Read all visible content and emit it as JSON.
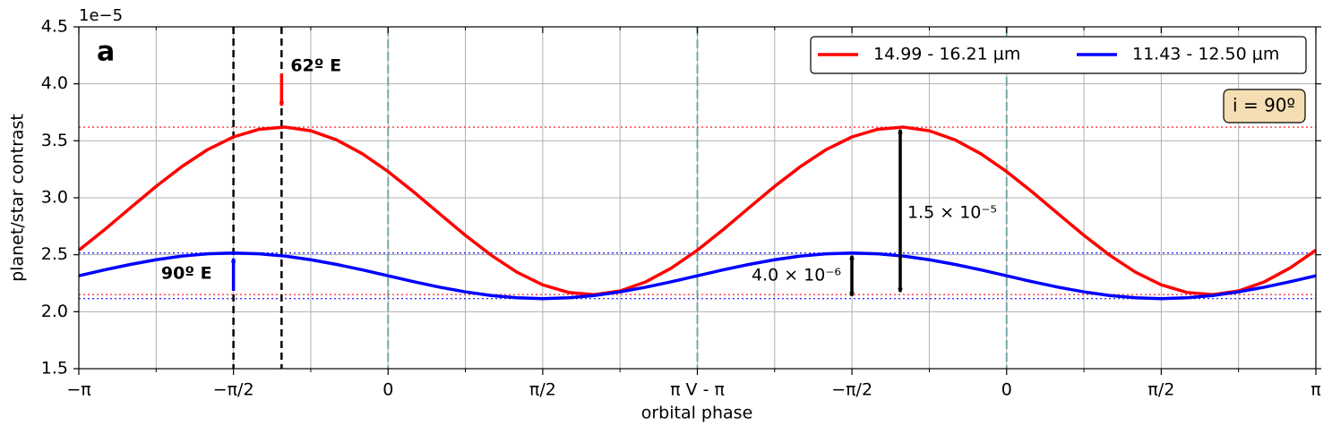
{
  "chart_data": {
    "type": "line",
    "panel_label": "a",
    "inclination_label": "i = 90º",
    "xlabel": "orbital phase",
    "ylabel": "planet/star contrast",
    "y_offset_label": "1e−5",
    "xlim": [
      -3.1416,
      9.4248
    ],
    "ylim": [
      1.5,
      4.5
    ],
    "xticks": [
      {
        "value": -3.1416,
        "label": "−π"
      },
      {
        "value": -1.5708,
        "label": "−π/2"
      },
      0,
      {
        "value": 1.5708,
        "label": "π/2"
      },
      {
        "value": 3.1416,
        "label": "π V - π"
      },
      {
        "value": 4.7124,
        "label": "−π/2"
      },
      {
        "value": 6.2832,
        "label": "0"
      },
      {
        "value": 7.854,
        "label": "π/2"
      },
      {
        "value": 9.4248,
        "label": "π"
      }
    ],
    "xminorticks": [
      -2.3562,
      -0.7854,
      0.7854,
      2.3562,
      3.927,
      5.4978,
      7.0686,
      8.6394
    ],
    "yticks": [
      1.5,
      {
        "value": 2,
        "label": "2.0"
      },
      2.5,
      {
        "value": 3,
        "label": "3.0"
      },
      3.5,
      {
        "value": 4,
        "label": "4.0"
      },
      4.5
    ],
    "grid": true,
    "legend_position": "upper right",
    "x": [
      -3.1416,
      -2.8798,
      -2.618,
      -2.3562,
      -2.0944,
      -1.8326,
      -1.5708,
      -1.309,
      -1.0472,
      -0.7854,
      -0.5236,
      -0.2618,
      0,
      0.2618,
      0.5236,
      0.7854,
      1.0472,
      1.309,
      1.5708,
      1.8326,
      2.0944,
      2.3562,
      2.618,
      2.8798,
      3.1416,
      3.4034,
      3.6652,
      3.927,
      4.1888,
      4.4506,
      4.7124,
      4.9742,
      5.236,
      5.4978,
      5.7596,
      6.0214,
      6.2832,
      6.545,
      6.8068,
      7.0686,
      7.3304,
      7.5922,
      7.854,
      8.1158,
      8.3776,
      8.6394,
      8.9012,
      9.163,
      9.4248
    ],
    "series": [
      {
        "name": "14.99 - 16.21 μm",
        "color": "#ff0000",
        "values": [
          2.54,
          2.72,
          2.911,
          3.1,
          3.274,
          3.423,
          3.534,
          3.601,
          3.62,
          3.588,
          3.508,
          3.386,
          3.23,
          3.05,
          2.859,
          2.67,
          2.496,
          2.347,
          2.236,
          2.169,
          2.15,
          2.182,
          2.262,
          2.384,
          2.54,
          2.72,
          2.911,
          3.1,
          3.274,
          3.423,
          3.534,
          3.601,
          3.62,
          3.588,
          3.508,
          3.386,
          3.23,
          3.05,
          2.859,
          2.67,
          2.496,
          2.347,
          2.236,
          2.169,
          2.15,
          2.182,
          2.262,
          2.384,
          2.54
        ]
      },
      {
        "name": "11.43 - 12.50 μm",
        "color": "#0000ff",
        "values": [
          2.315,
          2.367,
          2.415,
          2.456,
          2.488,
          2.508,
          2.515,
          2.508,
          2.488,
          2.456,
          2.415,
          2.367,
          2.315,
          2.263,
          2.215,
          2.174,
          2.142,
          2.122,
          2.115,
          2.122,
          2.142,
          2.174,
          2.215,
          2.263,
          2.315,
          2.367,
          2.415,
          2.456,
          2.488,
          2.508,
          2.515,
          2.508,
          2.488,
          2.456,
          2.415,
          2.367,
          2.315,
          2.263,
          2.215,
          2.174,
          2.142,
          2.122,
          2.115,
          2.122,
          2.142,
          2.174,
          2.215,
          2.263,
          2.315
        ]
      }
    ],
    "hlines": [
      {
        "value": 3.62,
        "color": "#ff0000"
      },
      {
        "value": 2.15,
        "color": "#ff0000"
      },
      {
        "value": 2.515,
        "color": "#0000ff"
      },
      {
        "value": 2.115,
        "color": "#0000ff"
      }
    ],
    "vlines": [
      {
        "value": -1.5708,
        "color": "#000000"
      },
      {
        "value": -1.0821,
        "color": "#000000"
      },
      {
        "value": 0,
        "color": "#5f9ea0"
      },
      {
        "value": 3.1416,
        "color": "#5f9ea0"
      },
      {
        "value": 6.2832,
        "color": "#5f9ea0"
      }
    ],
    "annotations": [
      {
        "text": "62º E",
        "color": "#ff0000"
      },
      {
        "text": "90º E",
        "color": "#0000ff"
      },
      {
        "text": "1.5 × 10⁻⁵",
        "color": "#000000"
      },
      {
        "text": "4.0 × 10⁻⁶",
        "color": "#000000"
      }
    ]
  }
}
